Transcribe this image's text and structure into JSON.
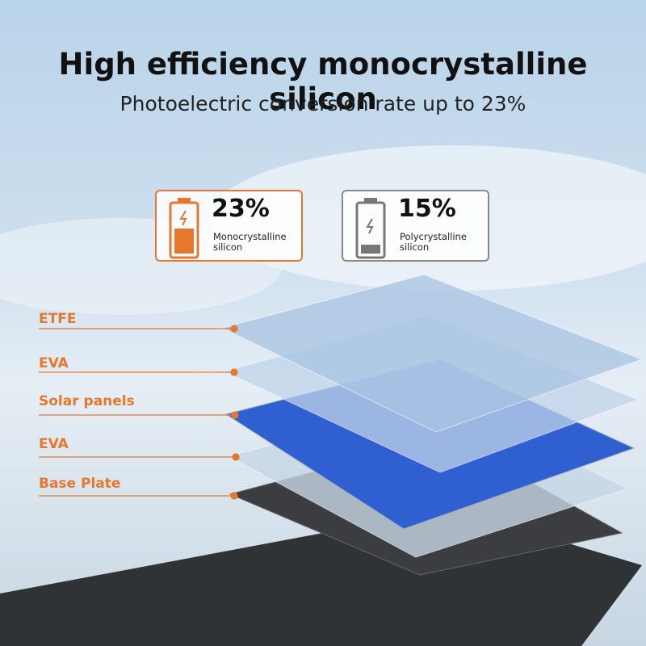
{
  "header": {
    "title": "High efficiency monocrystalline silicon",
    "subtitle": "Photoelectric conversion rate up to 23%"
  },
  "comparison": [
    {
      "value": "23%",
      "label": "Monocrystalline silicon"
    },
    {
      "value": "15%",
      "label": "Polycrystalline silicon"
    }
  ],
  "layers": [
    "ETFE",
    "EVA",
    "Solar panels",
    "EVA",
    "Base Plate"
  ]
}
